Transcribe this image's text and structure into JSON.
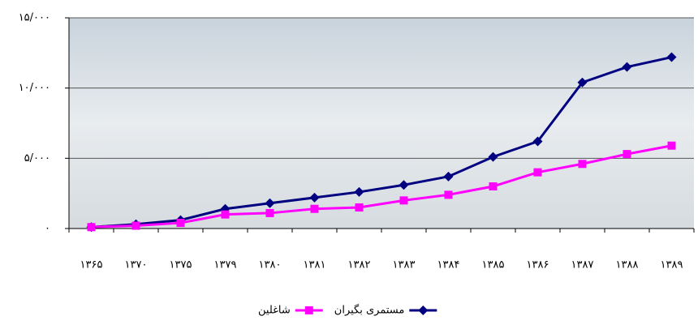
{
  "chart_data": {
    "type": "line",
    "categories": [
      "۱۳۶۵",
      "۱۳۷۰",
      "۱۳۷۵",
      "۱۳۷۹",
      "۱۳۸۰",
      "۱۳۸۱",
      "۱۳۸۲",
      "۱۳۸۳",
      "۱۳۸۴",
      "۱۳۸۵",
      "۱۳۸۶",
      "۱۳۸۷",
      "۱۳۸۸",
      "۱۳۸۹"
    ],
    "series": [
      {
        "name": "مستمری بگیران",
        "color": "#000080",
        "marker": "diamond",
        "values": [
          100,
          300,
          600,
          1400,
          1800,
          2200,
          2600,
          3100,
          3700,
          5100,
          6200,
          10400,
          11500,
          12200
        ]
      },
      {
        "name": "شاغلین",
        "color": "#ff00ff",
        "marker": "square",
        "values": [
          100,
          200,
          400,
          1000,
          1100,
          1400,
          1500,
          2000,
          2400,
          3000,
          4000,
          4600,
          5300,
          5900
        ]
      }
    ],
    "ylim": [
      0,
      15000
    ],
    "yticks": [
      {
        "value": 0,
        "label": "۰"
      },
      {
        "value": 5000,
        "label": "۵/۰۰۰"
      },
      {
        "value": 10000,
        "label": "۱۰/۰۰۰"
      },
      {
        "value": 15000,
        "label": "۱۵/۰۰۰"
      }
    ],
    "grid": true,
    "legend": "bottom"
  }
}
